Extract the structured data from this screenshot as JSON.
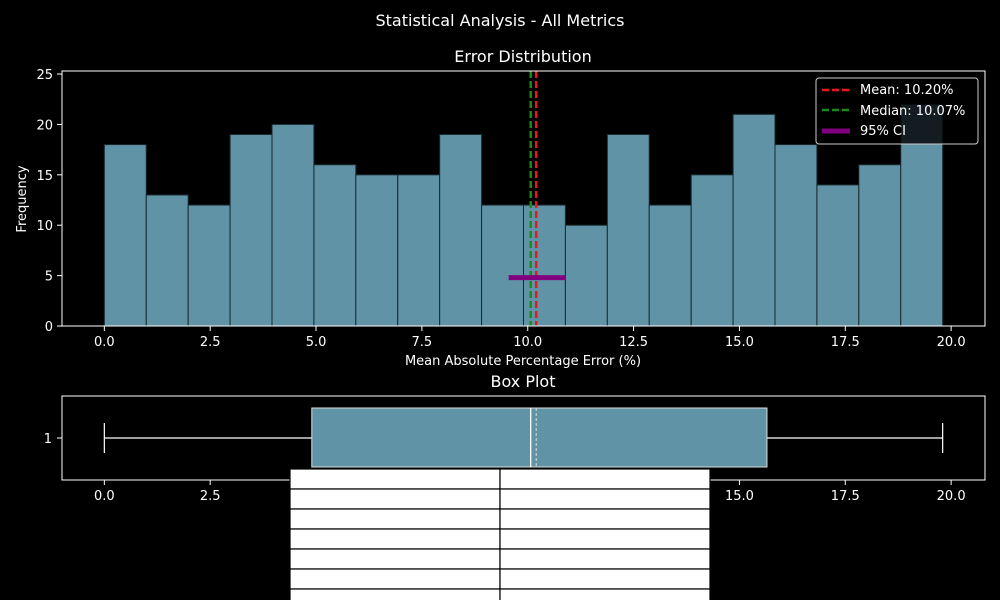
{
  "figure": {
    "suptitle": "Statistical Analysis - All Metrics",
    "background": "#000000"
  },
  "chart_data": [
    {
      "type": "bar",
      "subtype": "histogram",
      "title": "Error Distribution",
      "xlabel": "Mean Absolute Percentage Error (%)",
      "ylabel": "Frequency",
      "xlim": [
        -1.0,
        20.8
      ],
      "ylim": [
        0,
        25.3
      ],
      "xticks": [
        "0.0",
        "2.5",
        "5.0",
        "7.5",
        "10.0",
        "12.5",
        "15.0",
        "17.5",
        "20.0"
      ],
      "xtick_values": [
        0,
        2.5,
        5,
        7.5,
        10,
        12.5,
        15,
        17.5,
        20
      ],
      "yticks": [
        "0",
        "5",
        "10",
        "15",
        "20",
        "25"
      ],
      "ytick_values": [
        0,
        5,
        10,
        15,
        20,
        25
      ],
      "bin_start": 0.0,
      "bin_width": 0.99,
      "values": [
        18,
        13,
        12,
        19,
        20,
        16,
        15,
        15,
        19,
        12,
        12,
        10,
        19,
        12,
        15,
        21,
        18,
        14,
        16,
        22
      ],
      "bar_color": "#5f93a5",
      "mean_line": {
        "value": 10.2,
        "label": "Mean: 10.20%",
        "color": "#e8181a"
      },
      "median_line": {
        "value": 10.07,
        "label": "Median: 10.07%",
        "color": "#1a8a1a"
      },
      "ci": {
        "low": 9.55,
        "high": 10.9,
        "y": 4.8,
        "label": "95% CI",
        "color": "#800080"
      },
      "legend_position": "top-right",
      "grid": false
    },
    {
      "type": "box",
      "title": "Box Plot",
      "orientation": "horizontal",
      "category_label": "1",
      "whisker_low": 0.0,
      "q1": 4.9,
      "median": 10.07,
      "mean": 10.2,
      "q3": 15.65,
      "whisker_high": 19.8,
      "xlim": [
        -1.0,
        20.8
      ],
      "xticks": [
        "0.0",
        "2.5",
        "5.0",
        "7.5",
        "10.0",
        "12.5",
        "15.0",
        "17.5",
        "20.0"
      ],
      "xtick_values": [
        0,
        2.5,
        5,
        7.5,
        10,
        12.5,
        15,
        17.5,
        20
      ],
      "box_color": "#5f93a5"
    },
    {
      "type": "table",
      "rows": 7,
      "columns": 2,
      "cells": [
        [
          "",
          ""
        ],
        [
          "",
          ""
        ],
        [
          "",
          ""
        ],
        [
          "",
          ""
        ],
        [
          "",
          ""
        ],
        [
          "",
          ""
        ],
        [
          "",
          ""
        ]
      ]
    }
  ]
}
